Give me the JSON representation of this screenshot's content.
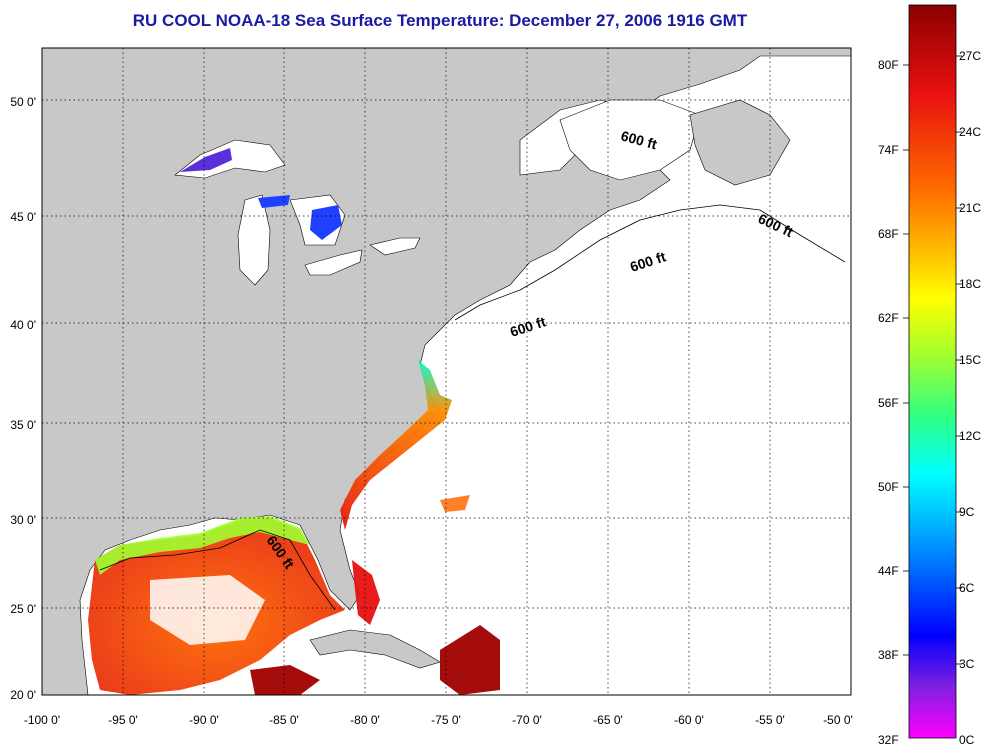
{
  "title": "RU COOL  NOAA-18  Sea Surface Temperature:  December 27, 2006 1916 GMT",
  "map": {
    "lon_ticks": [
      "-100 0'",
      "-95 0'",
      "-90 0'",
      "-85 0'",
      "-80 0'",
      "-75 0'",
      "-70 0'",
      "-65 0'",
      "-60 0'",
      "-55 0'",
      "-50 0'"
    ],
    "lat_ticks": [
      "50 0'",
      "45 0'",
      "40 0'",
      "35 0'",
      "30 0'",
      "25 0'",
      "20 0'"
    ],
    "contour_labels": [
      "600 ft",
      "600 ft",
      "600 ft",
      "600 ft",
      "600 ft"
    ],
    "colors": {
      "land": "#c8c8c8",
      "water": "#ffffff",
      "grid": "#000000"
    }
  },
  "colorbar": {
    "fahrenheit_labels": [
      "80F",
      "74F",
      "68F",
      "62F",
      "56F",
      "50F",
      "44F",
      "38F",
      "32F"
    ],
    "celsius_labels": [
      "27C",
      "24C",
      "21C",
      "18C",
      "15C",
      "12C",
      "9C",
      "6C",
      "3C",
      "0C"
    ],
    "colors": [
      "#8b0000",
      "#ff2000",
      "#ff8c00",
      "#ffff00",
      "#7fff00",
      "#00ff90",
      "#00ffff",
      "#0080ff",
      "#0000ff",
      "#8000ff",
      "#ff00ff"
    ]
  }
}
